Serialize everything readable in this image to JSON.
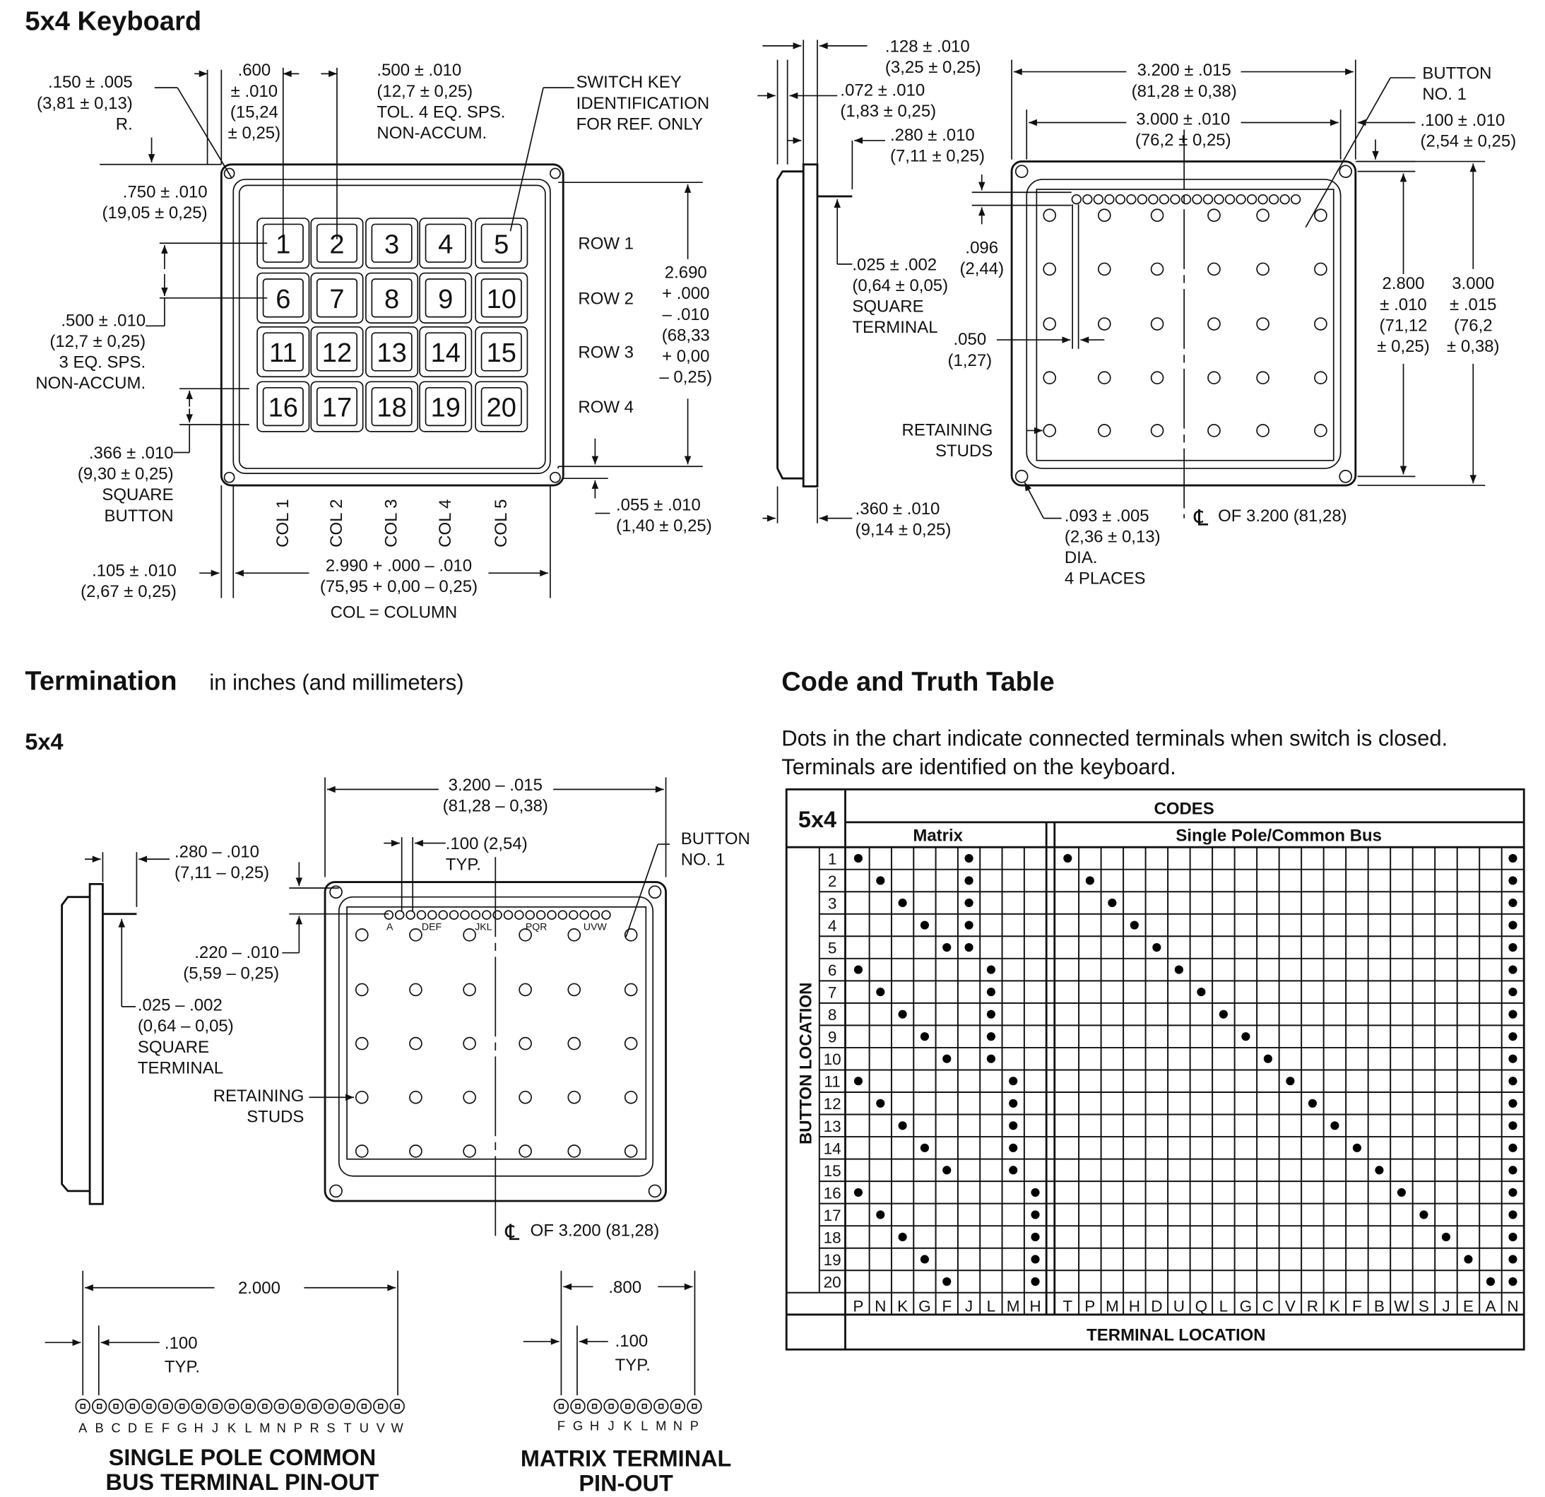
{
  "keyboard": {
    "title": "5x4 Keyboard",
    "keys": [
      "1",
      "2",
      "3",
      "4",
      "5",
      "6",
      "7",
      "8",
      "9",
      "10",
      "11",
      "12",
      "13",
      "14",
      "15",
      "16",
      "17",
      "18",
      "19",
      "20"
    ],
    "rows": [
      "ROW 1",
      "ROW 2",
      "ROW 3",
      "ROW 4"
    ],
    "cols": [
      "COL 1",
      "COL 2",
      "COL 3",
      "COL 4",
      "COL 5"
    ],
    "dims": {
      "radius": [
        ".150 ± .005",
        "(3,81 ± 0,13)",
        "R."
      ],
      "key_pitch_x": [
        ".600",
        "± .010",
        "(15,24",
        "± 0,25)"
      ],
      "spacing_h": [
        ".500 ± .010",
        "(12,7 ± 0,25)",
        "TOL. 4 EQ. SPS.",
        "NON-ACCUM."
      ],
      "switch_key": [
        "SWITCH KEY",
        "IDENTIFICATION",
        "FOR REF. ONLY"
      ],
      "top_offset": [
        ".750 ± .010",
        "(19,05 ± 0,25)"
      ],
      "spacing_v": [
        ".500 ± .010",
        "(12,7 ± 0,25)",
        "3 EQ. SPS.",
        "NON-ACCUM."
      ],
      "square_button": [
        ".366 ± .010",
        "(9,30 ± 0,25)",
        "SQUARE",
        "BUTTON"
      ],
      "height": [
        "2.690",
        "+ .000",
        "– .010",
        "(68,33",
        "+ 0,00",
        "– 0,25)"
      ],
      "bottom_offset": [
        ".055 ± .010",
        "(1,40 ± 0,25)"
      ],
      "left_offset": [
        ".105 ± .010",
        "(2,67 ± 0,25)"
      ],
      "width": [
        "2.990 + .000 – .010",
        "(75,95 + 0,00 – 0,25)"
      ],
      "col_legend": "COL = COLUMN"
    }
  },
  "rear_view": {
    "dims": {
      "d128": [
        ".128 ± .010",
        "(3,25 ± 0,25)"
      ],
      "d072": [
        ".072 ± .010",
        "(1,83 ± 0,25)"
      ],
      "d280": [
        ".280 ± .010",
        "(7,11 ± 0,25)"
      ],
      "terminal": [
        ".025 ± .002",
        "(0,64 ± 0,05)",
        "SQUARE",
        "TERMINAL"
      ],
      "d096": [
        ".096",
        "(2,44)"
      ],
      "d050": [
        ".050",
        "(1,27)"
      ],
      "studs": [
        "RETAINING",
        "STUDS"
      ],
      "d360": [
        ".360 ± .010",
        "(9,14 ± 0,25)"
      ],
      "holes": [
        ".093 ± .005",
        "(2,36 ± 0,13)",
        "DIA.",
        "4 PLACES"
      ],
      "centerline_symbol": "℄",
      "centerline": "OF 3.200 (81,28)",
      "w3200": [
        "3.200 ± .015",
        "(81,28 ± 0,38)"
      ],
      "w3000": [
        "3.000 ± .010",
        "(76,2 ± 0,25)"
      ],
      "button1": [
        "BUTTON",
        "NO. 1"
      ],
      "d100": [
        ".100 ± .010",
        "(2,54 ± 0,25)"
      ],
      "h2800": [
        "2.800",
        "± .010",
        "(71,12",
        "± 0,25)"
      ],
      "h3000": [
        "3.000",
        "± .015",
        "(76,2",
        "± 0,38)"
      ]
    }
  },
  "termination": {
    "title": "Termination",
    "subtitle": "in inches (and millimeters)",
    "model": "5x4",
    "pin_labels_group": [
      "A",
      "DEF",
      "JKL",
      "PQR",
      "UVW"
    ],
    "dims": {
      "w3200": [
        "3.200 – .015",
        "(81,28 – 0,38)"
      ],
      "pitch": [
        ".100 (2,54)",
        "TYP."
      ],
      "button1": [
        "BUTTON",
        "NO. 1"
      ],
      "d280": [
        ".280 – .010",
        "(7,11 – 0,25)"
      ],
      "d220": [
        ".220 – .010",
        "(5,59 – 0,25)"
      ],
      "terminal": [
        ".025 – .002",
        "(0,64 – 0,05)",
        "SQUARE",
        "TERMINAL"
      ],
      "studs": [
        "RETAINING",
        "STUDS"
      ],
      "centerline_symbol": "℄",
      "centerline": "OF 3.200 (81,28)"
    },
    "single_pole": {
      "span": "2.000",
      "pitch": [
        ".100",
        "TYP."
      ],
      "pins": [
        "A",
        "B",
        "C",
        "D",
        "E",
        "F",
        "G",
        "H",
        "J",
        "K",
        "L",
        "M",
        "N",
        "P",
        "R",
        "S",
        "T",
        "U",
        "V",
        "W"
      ],
      "caption": [
        "SINGLE POLE COMMON",
        "BUS TERMINAL PIN-OUT"
      ]
    },
    "matrix": {
      "span": ".800",
      "pitch": [
        ".100",
        "TYP."
      ],
      "pins": [
        "F",
        "G",
        "H",
        "J",
        "K",
        "L",
        "M",
        "N",
        "P"
      ],
      "caption": [
        "MATRIX TERMINAL",
        "PIN-OUT"
      ]
    }
  },
  "truth_table": {
    "title": "Code and Truth Table",
    "description": [
      "Dots in the chart indicate connected terminals when switch is closed.",
      "Terminals are identified on the keyboard."
    ],
    "model": "5x4",
    "codes_header": "CODES",
    "matrix_header": "Matrix",
    "single_pole_header": "Single Pole/Common Bus",
    "row_axis_label": "BUTTON LOCATION",
    "column_axis_label": "TERMINAL LOCATION",
    "matrix_columns": [
      "P",
      "N",
      "K",
      "G",
      "F",
      "J",
      "L",
      "M",
      "H"
    ],
    "single_pole_columns": [
      "T",
      "P",
      "M",
      "H",
      "D",
      "U",
      "Q",
      "L",
      "G",
      "C",
      "V",
      "R",
      "K",
      "F",
      "B",
      "W",
      "S",
      "J",
      "E",
      "A",
      "N"
    ],
    "rows": [
      {
        "button": "1",
        "matrix": [
          "P",
          "J"
        ],
        "single_pole": [
          0,
          20
        ]
      },
      {
        "button": "2",
        "matrix": [
          "N",
          "J"
        ],
        "single_pole": [
          1,
          20
        ]
      },
      {
        "button": "3",
        "matrix": [
          "K",
          "J"
        ],
        "single_pole": [
          2,
          20
        ]
      },
      {
        "button": "4",
        "matrix": [
          "G",
          "J"
        ],
        "single_pole": [
          3,
          20
        ]
      },
      {
        "button": "5",
        "matrix": [
          "F",
          "J"
        ],
        "single_pole": [
          4,
          20
        ]
      },
      {
        "button": "6",
        "matrix": [
          "P",
          "L"
        ],
        "single_pole": [
          5,
          20
        ]
      },
      {
        "button": "7",
        "matrix": [
          "N",
          "L"
        ],
        "single_pole": [
          6,
          20
        ]
      },
      {
        "button": "8",
        "matrix": [
          "K",
          "L"
        ],
        "single_pole": [
          7,
          20
        ]
      },
      {
        "button": "9",
        "matrix": [
          "G",
          "L"
        ],
        "single_pole": [
          8,
          20
        ]
      },
      {
        "button": "10",
        "matrix": [
          "F",
          "L"
        ],
        "single_pole": [
          9,
          20
        ]
      },
      {
        "button": "11",
        "matrix": [
          "P",
          "M"
        ],
        "single_pole": [
          10,
          20
        ]
      },
      {
        "button": "12",
        "matrix": [
          "N",
          "M"
        ],
        "single_pole": [
          11,
          20
        ]
      },
      {
        "button": "13",
        "matrix": [
          "K",
          "M"
        ],
        "single_pole": [
          12,
          20
        ]
      },
      {
        "button": "14",
        "matrix": [
          "G",
          "M"
        ],
        "single_pole": [
          13,
          20
        ]
      },
      {
        "button": "15",
        "matrix": [
          "F",
          "M"
        ],
        "single_pole": [
          14,
          20
        ]
      },
      {
        "button": "16",
        "matrix": [
          "P",
          "H"
        ],
        "single_pole": [
          15,
          20
        ]
      },
      {
        "button": "17",
        "matrix": [
          "N",
          "H"
        ],
        "single_pole": [
          16,
          20
        ]
      },
      {
        "button": "18",
        "matrix": [
          "K",
          "H"
        ],
        "single_pole": [
          17,
          20
        ]
      },
      {
        "button": "19",
        "matrix": [
          "G",
          "H"
        ],
        "single_pole": [
          18,
          20
        ]
      },
      {
        "button": "20",
        "matrix": [
          "F",
          "H"
        ],
        "single_pole": [
          19,
          20
        ]
      }
    ]
  }
}
